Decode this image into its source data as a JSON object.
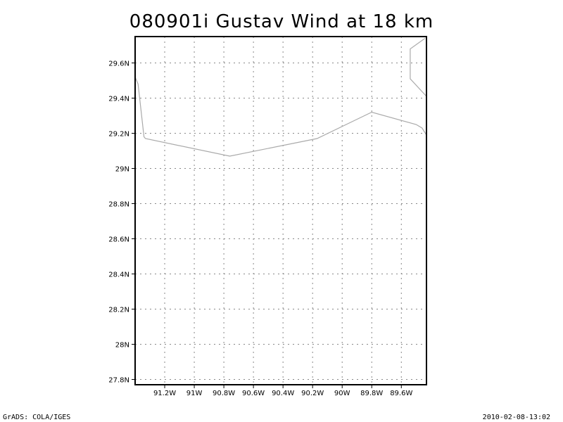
{
  "title": "080901i Gustav Wind at 18 km",
  "footer": {
    "left": "GrADS: COLA/IGES",
    "right": "2010-02-08-13:02"
  },
  "map": {
    "lon_range": [
      -91.4,
      -89.43
    ],
    "lat_range": [
      27.77,
      29.75
    ],
    "x_ticks": [
      {
        "value": -91.2,
        "label": "91.2W"
      },
      {
        "value": -91.0,
        "label": "91W"
      },
      {
        "value": -90.8,
        "label": "90.8W"
      },
      {
        "value": -90.6,
        "label": "90.6W"
      },
      {
        "value": -90.4,
        "label": "90.4W"
      },
      {
        "value": -90.2,
        "label": "90.2W"
      },
      {
        "value": -90.0,
        "label": "90W"
      },
      {
        "value": -89.8,
        "label": "89.8W"
      },
      {
        "value": -89.6,
        "label": "89.6W"
      }
    ],
    "y_ticks": [
      {
        "value": 27.8,
        "label": "27.8N"
      },
      {
        "value": 28.0,
        "label": "28N"
      },
      {
        "value": 28.2,
        "label": "28.2N"
      },
      {
        "value": 28.4,
        "label": "28.4N"
      },
      {
        "value": 28.6,
        "label": "28.6N"
      },
      {
        "value": 28.8,
        "label": "28.8N"
      },
      {
        "value": 29.0,
        "label": "29N"
      },
      {
        "value": 29.2,
        "label": "29.2N"
      },
      {
        "value": 29.4,
        "label": "29.4N"
      },
      {
        "value": 29.6,
        "label": "29.6N"
      }
    ],
    "grid": true,
    "coastlines": [
      [
        [
          -91.4,
          29.52
        ],
        [
          -91.38,
          29.48
        ],
        [
          -91.34,
          29.18
        ],
        [
          -91.33,
          29.17
        ],
        [
          -90.76,
          29.07
        ],
        [
          -90.17,
          29.17
        ],
        [
          -89.8,
          29.32
        ],
        [
          -89.5,
          29.25
        ],
        [
          -89.46,
          29.23
        ],
        [
          -89.43,
          29.19
        ]
      ],
      [
        [
          -89.44,
          29.74
        ],
        [
          -89.54,
          29.68
        ],
        [
          -89.54,
          29.51
        ],
        [
          -89.43,
          29.41
        ]
      ]
    ],
    "colors": {
      "frame": "#000000",
      "grid": "#888888",
      "coastline": "#aaaaaa"
    }
  }
}
